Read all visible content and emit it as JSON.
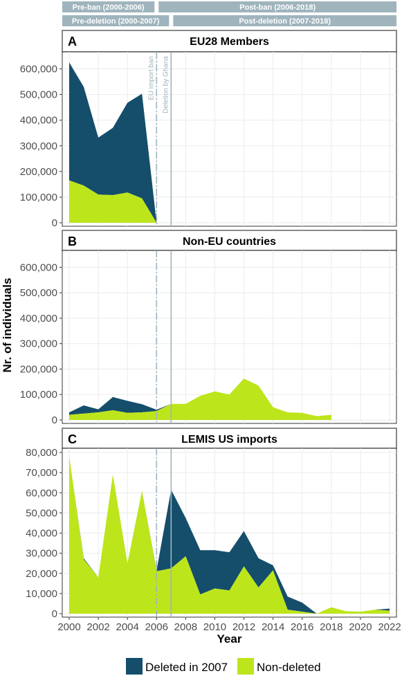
{
  "period_bands": {
    "row1": [
      {
        "label": "Pre-ban (2000-2006)",
        "from": 2000,
        "to": 2006
      },
      {
        "label": "Post-ban (2006-2018)",
        "from": 2006,
        "to": 2018
      }
    ],
    "row2": [
      {
        "label": "Pre-deletion (2000-2007)",
        "from": 2000,
        "to": 2007
      },
      {
        "label": "Post-deletion (2007-2018)",
        "from": 2007,
        "to": 2018
      }
    ],
    "color": "#9fb4bd"
  },
  "colors": {
    "deleted": "#154e6b",
    "non_deleted": "#bde51b",
    "vline": "#9fb4bd",
    "strip_border": "#888888"
  },
  "vlines": [
    {
      "x": 2006,
      "label": "EU import ban",
      "style": "dashdot"
    },
    {
      "x": 2007,
      "label": "Deletion by Ghana",
      "style": "solid"
    }
  ],
  "chart_data": {
    "type": "area",
    "stacked": true,
    "xlabel": "Year",
    "ylabel": "Nr. of individuals",
    "xlim": [
      2000,
      2022
    ],
    "xticks": [
      2000,
      2002,
      2004,
      2006,
      2008,
      2010,
      2012,
      2014,
      2016,
      2018,
      2020,
      2022
    ],
    "legend": {
      "position": "bottom",
      "entries": [
        {
          "key": "deleted",
          "label": "Deleted in 2007"
        },
        {
          "key": "non_deleted",
          "label": "Non-deleted"
        }
      ]
    },
    "grid": true,
    "panels": [
      {
        "letter": "A",
        "title": "EU28 Members",
        "ylim": [
          0,
          650000
        ],
        "yticks": [
          "0",
          "100,000",
          "200,000",
          "300,000",
          "400,000",
          "500,000",
          "600,000"
        ],
        "ytick_values": [
          0,
          100000,
          200000,
          300000,
          400000,
          500000,
          600000
        ],
        "x": [
          2000,
          2001,
          2002,
          2003,
          2004,
          2005,
          2006
        ],
        "non_deleted": [
          165000,
          145000,
          110000,
          108000,
          118000,
          95000,
          0
        ],
        "deleted": [
          460000,
          385000,
          222000,
          262000,
          350000,
          408000,
          0
        ]
      },
      {
        "letter": "B",
        "title": "Non-EU countries",
        "ylim": [
          0,
          650000
        ],
        "yticks": [
          "0",
          "100,000",
          "200,000",
          "300,000",
          "400,000",
          "500,000",
          "600,000"
        ],
        "ytick_values": [
          0,
          100000,
          200000,
          300000,
          400000,
          500000,
          600000
        ],
        "x": [
          2000,
          2001,
          2002,
          2003,
          2004,
          2005,
          2006,
          2007,
          2008,
          2009,
          2010,
          2011,
          2012,
          2013,
          2014,
          2015,
          2016,
          2017,
          2018
        ],
        "non_deleted": [
          20000,
          25000,
          30000,
          38000,
          28000,
          30000,
          35000,
          63000,
          63000,
          95000,
          112000,
          100000,
          163000,
          135000,
          50000,
          30000,
          28000,
          15000,
          20000
        ],
        "deleted": [
          10000,
          32000,
          12000,
          52000,
          47000,
          32000,
          5000,
          0,
          0,
          0,
          0,
          0,
          0,
          0,
          0,
          0,
          0,
          0,
          0
        ]
      },
      {
        "letter": "C",
        "title": "LEMIS US imports",
        "ylim": [
          0,
          80000
        ],
        "yticks": [
          "0",
          "10,000",
          "20,000",
          "30,000",
          "40,000",
          "50,000",
          "60,000",
          "70,000",
          "80,000"
        ],
        "ytick_values": [
          0,
          10000,
          20000,
          30000,
          40000,
          50000,
          60000,
          70000,
          80000
        ],
        "x": [
          2000,
          2001,
          2002,
          2003,
          2004,
          2005,
          2006,
          2007,
          2008,
          2009,
          2010,
          2011,
          2012,
          2013,
          2014,
          2015,
          2016,
          2017,
          2018,
          2019,
          2020,
          2021,
          2022
        ],
        "non_deleted": [
          78000,
          27000,
          18000,
          69000,
          25000,
          61000,
          21000,
          22500,
          28500,
          9500,
          12500,
          11500,
          23500,
          13000,
          21500,
          2000,
          1000,
          0,
          3200,
          1200,
          1000,
          2000,
          1500
        ],
        "deleted": [
          0,
          500,
          0,
          0,
          0,
          0,
          500,
          39000,
          19000,
          22000,
          19000,
          19000,
          17500,
          14500,
          2500,
          6500,
          4500,
          0,
          0,
          0,
          0,
          0,
          1000
        ]
      }
    ]
  }
}
